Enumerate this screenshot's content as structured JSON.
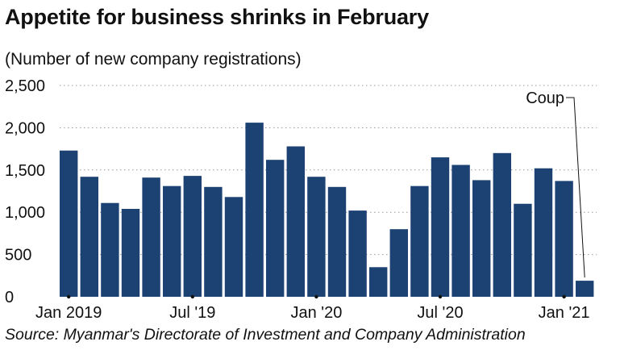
{
  "title": "Appetite for business shrinks in February",
  "subtitle": "(Number of new company registrations)",
  "source": "Source: Myanmar's Directorate of Investment and Company Administration",
  "chart_data": {
    "type": "bar",
    "title": "Appetite for business shrinks in February",
    "ylabel": "Number of new company registrations",
    "xlabel": "",
    "ylim": [
      0,
      2500
    ],
    "yticks": [
      0,
      500,
      1000,
      1500,
      2000,
      2500
    ],
    "ytick_labels": [
      "0",
      "500",
      "1,000",
      "1,500",
      "2,000",
      "2,500"
    ],
    "grid": true,
    "color": "#1c4273",
    "categories": [
      "Jan 2019",
      "Feb 2019",
      "Mar 2019",
      "Apr 2019",
      "May 2019",
      "Jun 2019",
      "Jul 2019",
      "Aug 2019",
      "Sep 2019",
      "Oct 2019",
      "Nov 2019",
      "Dec 2019",
      "Jan 2020",
      "Feb 2020",
      "Mar 2020",
      "Apr 2020",
      "May 2020",
      "Jun 2020",
      "Jul 2020",
      "Aug 2020",
      "Sep 2020",
      "Oct 2020",
      "Nov 2020",
      "Dec 2020",
      "Jan 2021",
      "Feb 2021"
    ],
    "values": [
      1730,
      1420,
      1110,
      1040,
      1410,
      1310,
      1430,
      1300,
      1180,
      2060,
      1620,
      1780,
      1420,
      1300,
      1020,
      350,
      800,
      1310,
      1650,
      1560,
      1380,
      1700,
      1100,
      1520,
      1370,
      190
    ],
    "xtick_positions": [
      0,
      6,
      12,
      18,
      24
    ],
    "xtick_labels": [
      "Jan 2019",
      "Jul '19",
      "Jan '20",
      "Jul '20",
      "Jan '21"
    ],
    "annotations": [
      {
        "text": "Coup",
        "category": "Feb 2021"
      }
    ]
  }
}
